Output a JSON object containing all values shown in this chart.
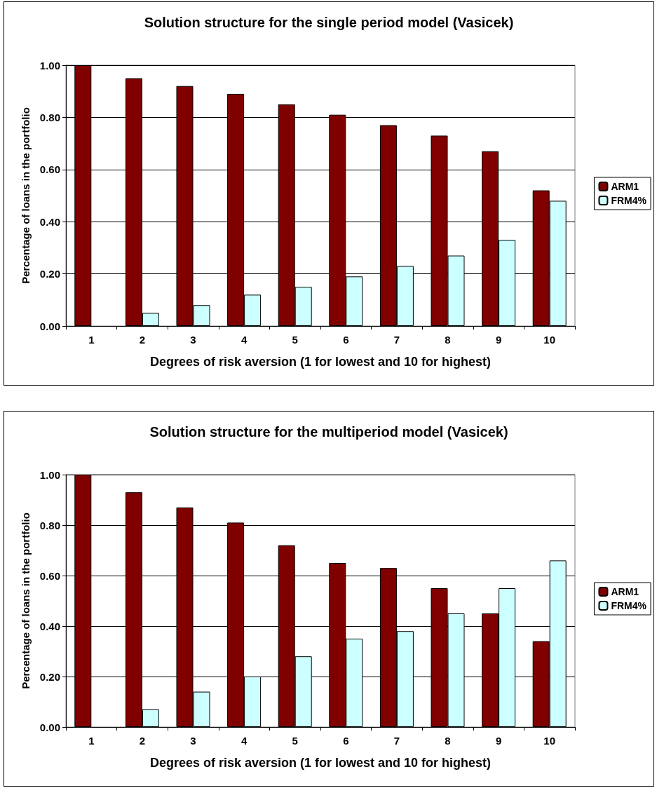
{
  "chart_data": [
    {
      "type": "bar",
      "title": "Solution structure for the single period model (Vasicek)",
      "xlabel": "Degrees of risk aversion (1 for lowest and 10 for highest)",
      "ylabel": "Percentage of loans in the portfolio",
      "categories": [
        "1",
        "2",
        "3",
        "4",
        "5",
        "6",
        "7",
        "8",
        "9",
        "10"
      ],
      "series": [
        {
          "name": "ARM1",
          "color": "#800000",
          "values": [
            1.0,
            0.95,
            0.92,
            0.89,
            0.85,
            0.81,
            0.77,
            0.73,
            0.67,
            0.52
          ]
        },
        {
          "name": "FRM4%",
          "color": "#ccffff",
          "values": [
            0,
            0.05,
            0.08,
            0.12,
            0.15,
            0.19,
            0.23,
            0.27,
            0.33,
            0.48
          ]
        }
      ],
      "ylim": [
        0,
        1
      ],
      "yticks": [
        {
          "value": 0,
          "label": "0.00"
        },
        {
          "value": 0.2,
          "label": "0.20"
        },
        {
          "value": 0.4,
          "label": "0.40"
        },
        {
          "value": 0.6,
          "label": "0.60"
        },
        {
          "value": 0.8,
          "label": "0.80"
        },
        {
          "value": 1,
          "label": "1.00"
        }
      ],
      "grid": "y",
      "legend": "right"
    },
    {
      "type": "bar",
      "title": "Solution structure for the multiperiod model (Vasicek)",
      "xlabel": "Degrees of risk aversion (1 for lowest and 10 for highest)",
      "ylabel": "Percentage of loans in the portfolio",
      "categories": [
        "1",
        "2",
        "3",
        "4",
        "5",
        "6",
        "7",
        "8",
        "9",
        "10"
      ],
      "series": [
        {
          "name": "ARM1",
          "color": "#800000",
          "values": [
            1.0,
            0.93,
            0.87,
            0.81,
            0.72,
            0.65,
            0.63,
            0.55,
            0.45,
            0.34
          ]
        },
        {
          "name": "FRM4%",
          "color": "#ccffff",
          "values": [
            0,
            0.07,
            0.14,
            0.2,
            0.28,
            0.35,
            0.38,
            0.45,
            0.55,
            0.66
          ]
        }
      ],
      "ylim": [
        0,
        1
      ],
      "yticks": [
        {
          "value": 0,
          "label": "0.00"
        },
        {
          "value": 0.2,
          "label": "0.20"
        },
        {
          "value": 0.4,
          "label": "0.40"
        },
        {
          "value": 0.6,
          "label": "0.60"
        },
        {
          "value": 0.8,
          "label": "0.80"
        },
        {
          "value": 1,
          "label": "1.00"
        }
      ],
      "grid": "y",
      "legend": "right"
    }
  ]
}
